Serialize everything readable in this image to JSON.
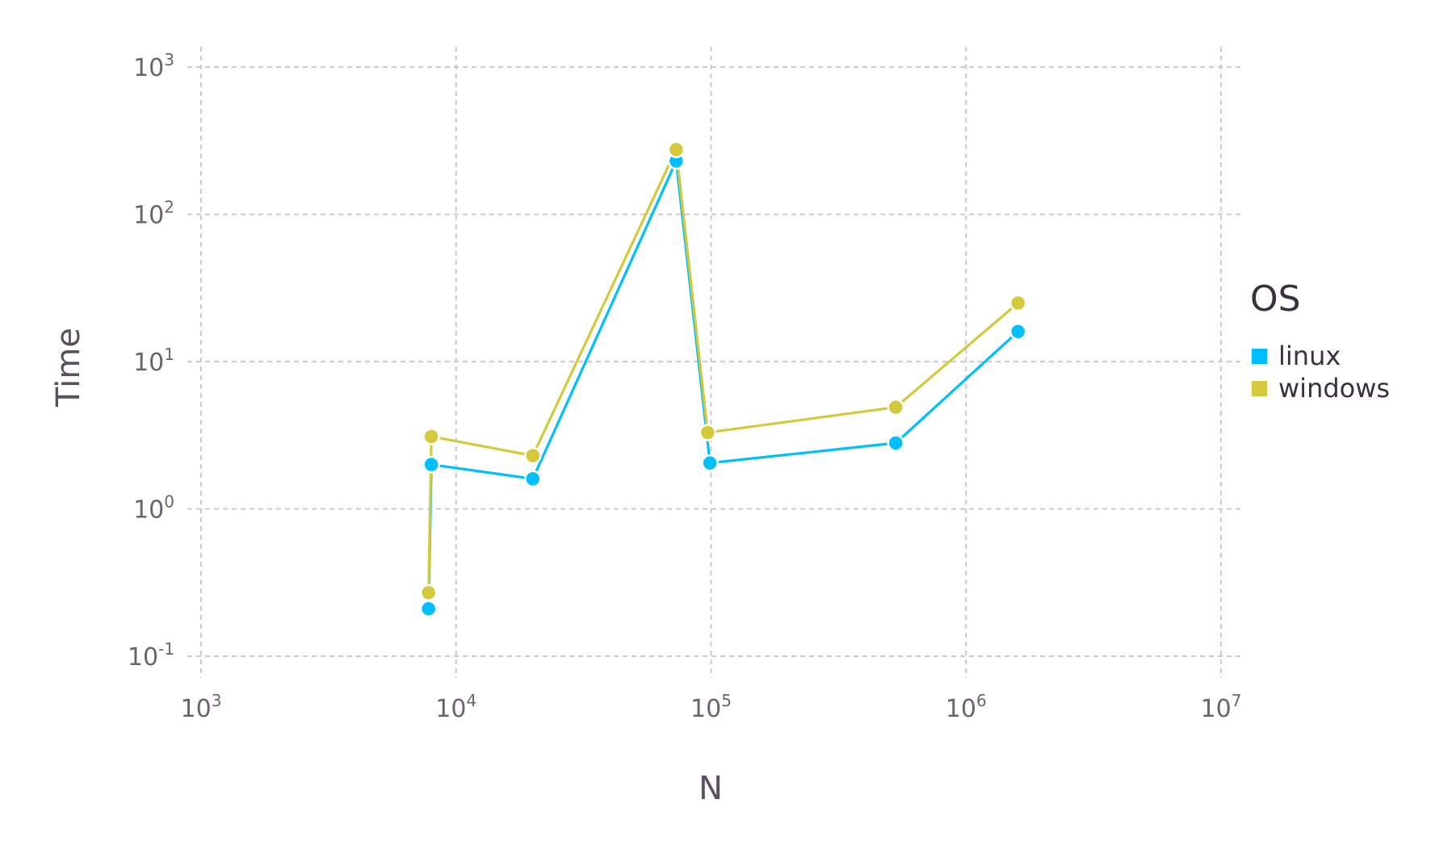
{
  "chart_data": {
    "type": "line",
    "xlabel": "N",
    "ylabel": "Time",
    "xscale": "log",
    "yscale": "log",
    "xlim": [
      1000,
      10000000
    ],
    "ylim": [
      0.1,
      1000
    ],
    "x_ticks": [
      {
        "base": "10",
        "exp": "3"
      },
      {
        "base": "10",
        "exp": "4"
      },
      {
        "base": "10",
        "exp": "5"
      },
      {
        "base": "10",
        "exp": "6"
      },
      {
        "base": "10",
        "exp": "7"
      }
    ],
    "y_ticks": [
      {
        "base": "10",
        "exp": "3"
      },
      {
        "base": "10",
        "exp": "2"
      },
      {
        "base": "10",
        "exp": "1"
      },
      {
        "base": "10",
        "exp": "0"
      },
      {
        "base": "10",
        "exp": "-1"
      }
    ],
    "grid": true,
    "legend": {
      "title": "OS",
      "position": "right"
    },
    "series": [
      {
        "name": "linux",
        "color": "#00bfff",
        "points": [
          {
            "x": 7800,
            "y": 0.21
          },
          {
            "x": 8000,
            "y": 2.0
          },
          {
            "x": 20000,
            "y": 1.6
          },
          {
            "x": 73000,
            "y": 230
          },
          {
            "x": 99000,
            "y": 2.05
          },
          {
            "x": 530000,
            "y": 2.8
          },
          {
            "x": 1600000,
            "y": 16
          }
        ]
      },
      {
        "name": "windows",
        "color": "#d4c93a",
        "points": [
          {
            "x": 7800,
            "y": 0.27
          },
          {
            "x": 8000,
            "y": 3.1
          },
          {
            "x": 20000,
            "y": 2.3
          },
          {
            "x": 73000,
            "y": 275
          },
          {
            "x": 97000,
            "y": 3.3
          },
          {
            "x": 530000,
            "y": 4.9
          },
          {
            "x": 1600000,
            "y": 25
          }
        ]
      }
    ]
  }
}
